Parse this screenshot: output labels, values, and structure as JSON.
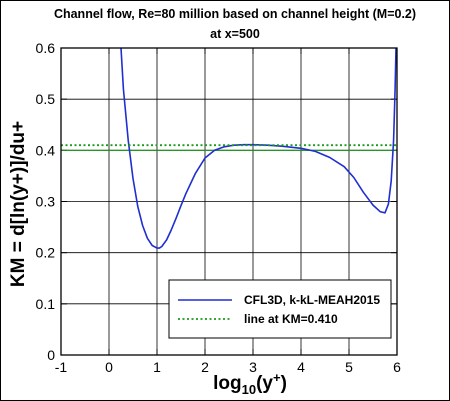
{
  "chart_data": {
    "type": "line",
    "title": "Channel flow, Re=80 million based on channel height (M=0.2)",
    "subtitle": "at x=500",
    "xlabel": "log₁₀(y⁺)",
    "ylabel": "KM = d[ln(y+)]/du+",
    "xlim": [
      -1,
      6
    ],
    "ylim": [
      0,
      0.6
    ],
    "xticks": [
      "-1",
      "0",
      "1",
      "2",
      "3",
      "4",
      "5",
      "6"
    ],
    "yticks": [
      "0",
      "0.1",
      "0.2",
      "0.3",
      "0.4",
      "0.5",
      "0.6"
    ],
    "grid": true,
    "legend_position": "bottom-right",
    "series": [
      {
        "name": "CFL3D, k-kL-MEAH2015",
        "color": "#1f2fd0",
        "style": "solid",
        "x": [
          0.25,
          0.3,
          0.4,
          0.5,
          0.6,
          0.7,
          0.8,
          0.9,
          1.0,
          1.05,
          1.1,
          1.2,
          1.3,
          1.4,
          1.5,
          1.6,
          1.8,
          2.0,
          2.2,
          2.4,
          2.6,
          2.8,
          3.0,
          3.3,
          3.6,
          4.0,
          4.3,
          4.6,
          4.9,
          5.1,
          5.3,
          5.5,
          5.65,
          5.75,
          5.82,
          5.88,
          5.93,
          5.96,
          5.98
        ],
        "y": [
          0.6,
          0.52,
          0.42,
          0.345,
          0.29,
          0.253,
          0.228,
          0.214,
          0.209,
          0.209,
          0.212,
          0.225,
          0.245,
          0.268,
          0.292,
          0.315,
          0.355,
          0.385,
          0.4,
          0.407,
          0.41,
          0.411,
          0.411,
          0.41,
          0.408,
          0.404,
          0.398,
          0.386,
          0.368,
          0.347,
          0.318,
          0.293,
          0.28,
          0.278,
          0.295,
          0.34,
          0.42,
          0.52,
          0.6
        ]
      },
      {
        "name": "line at KM=0.410",
        "color": "#1a9a1a",
        "style": "dotted",
        "x": [
          -1,
          6
        ],
        "y": [
          0.41,
          0.41
        ]
      }
    ],
    "reference_line": {
      "y": 0.4,
      "color": "#1a9a1a",
      "style": "solid"
    }
  }
}
